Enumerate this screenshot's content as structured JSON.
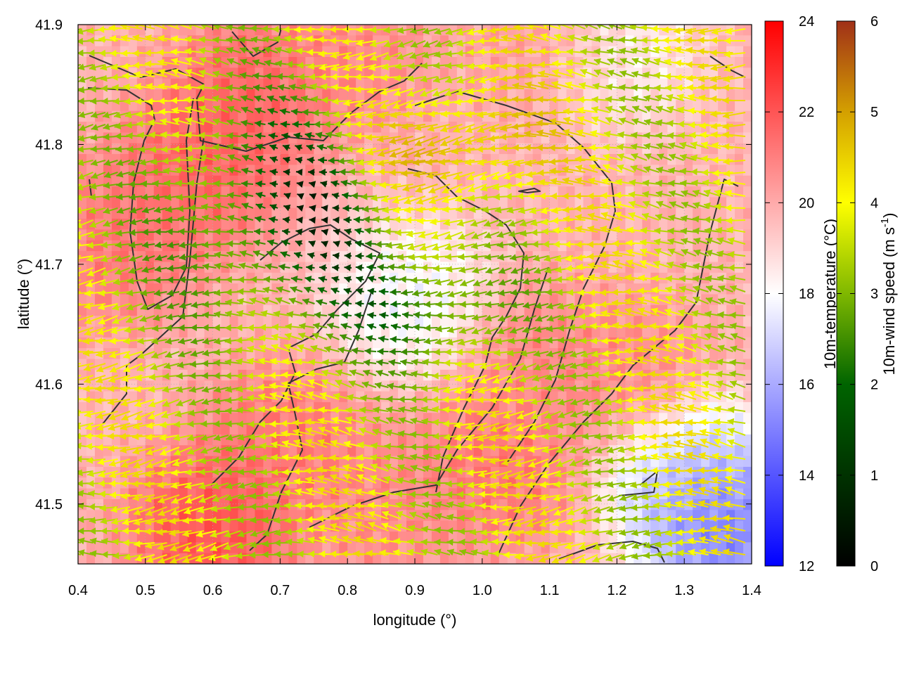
{
  "chart_data": {
    "type": "heatmap",
    "overlays": [
      "vector-field",
      "contour-lines"
    ],
    "xlabel": "longitude (°)",
    "ylabel": "latitude (°)",
    "xlim": [
      0.4,
      1.4
    ],
    "ylim": [
      41.45,
      41.9
    ],
    "x_ticks": [
      "0.4",
      "0.5",
      "0.6",
      "0.7",
      "0.8",
      "0.9",
      "1.0",
      "1.1",
      "1.2",
      "1.3",
      "1.4"
    ],
    "y_ticks": [
      "41.5",
      "41.6",
      "41.7",
      "41.8",
      "41.9"
    ],
    "grid": true,
    "temperature_colorbar": {
      "label": "10m-temperature (°C)",
      "range": [
        12,
        24
      ],
      "ticks": [
        "12",
        "14",
        "16",
        "18",
        "20",
        "22",
        "24"
      ],
      "colors": [
        "#0000ff",
        "#ffffff",
        "#ff0000"
      ]
    },
    "wind_colorbar": {
      "label_main": "10m-wind speed (m s",
      "label_sup": "-1",
      "label_end": ")",
      "range": [
        0,
        6
      ],
      "ticks": [
        "0",
        "1",
        "2",
        "3",
        "4",
        "5",
        "6"
      ],
      "colors": [
        "#000000",
        "#006400",
        "#7fb800",
        "#ffff00",
        "#d4a000",
        "#a03018"
      ]
    },
    "warm_regions": [
      {
        "x": 0.58,
        "y": 41.78,
        "temp": 22
      },
      {
        "x": 0.66,
        "y": 41.84,
        "temp": 22
      },
      {
        "x": 0.47,
        "y": 41.72,
        "temp": 21.5
      },
      {
        "x": 0.6,
        "y": 41.48,
        "temp": 22.5
      },
      {
        "x": 1.02,
        "y": 41.53,
        "temp": 21.5
      },
      {
        "x": 1.08,
        "y": 41.62,
        "temp": 21
      },
      {
        "x": 0.7,
        "y": 41.55,
        "temp": 21.5
      },
      {
        "x": 1.22,
        "y": 41.6,
        "temp": 21
      },
      {
        "x": 0.8,
        "y": 41.88,
        "temp": 21
      },
      {
        "x": 1.1,
        "y": 41.89,
        "temp": 20.5
      },
      {
        "x": 0.85,
        "y": 41.5,
        "temp": 21
      }
    ],
    "cool_regions": [
      {
        "x": 0.9,
        "y": 41.67,
        "temp": 17.5
      },
      {
        "x": 1.36,
        "y": 41.48,
        "temp": 14
      },
      {
        "x": 1.3,
        "y": 41.53,
        "temp": 16
      },
      {
        "x": 1.2,
        "y": 41.88,
        "temp": 18
      }
    ]
  }
}
